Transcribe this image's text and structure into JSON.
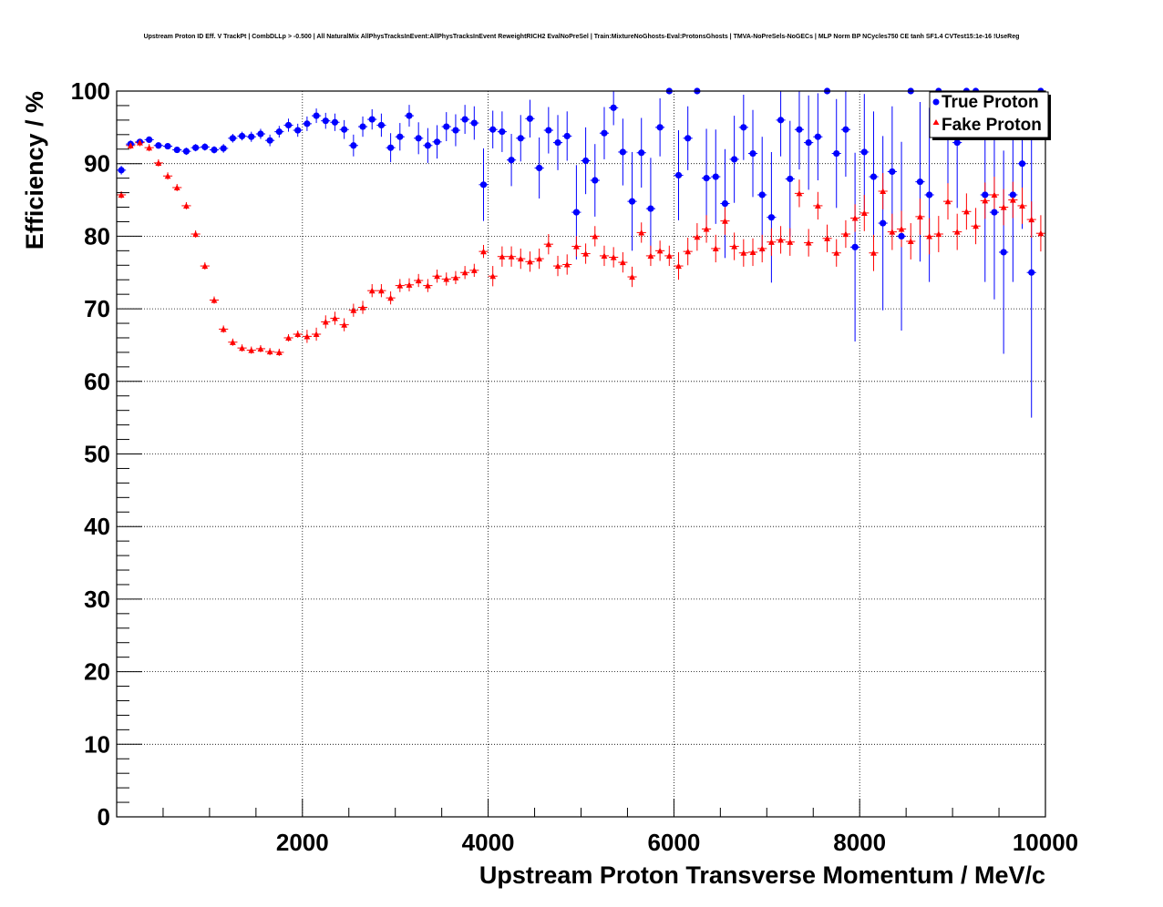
{
  "chart_data": {
    "type": "scatter",
    "title": "Upstream Proton ID Eff. V TrackPt | CombDLLp > -0.500 | All NaturalMix AllPhysTracksInEvent:AllPhysTracksInEvent ReweightRICH2 EvalNoPreSel | Train:MixtureNoGhosts-Eval:ProtonsGhosts | TMVA-NoPreSels-NoGECs | MLP Norm BP NCycles750 CE tanh SF1.4 CVTest15:1e-16 !UseReg",
    "xlabel": "Upstream Proton Transverse Momentum / MeV/c",
    "ylabel": "Efficiency / %",
    "xlim": [
      0,
      10000
    ],
    "ylim": [
      0,
      100
    ],
    "x_ticks": [
      2000,
      4000,
      6000,
      8000,
      10000
    ],
    "y_ticks": [
      0,
      10,
      20,
      30,
      40,
      50,
      60,
      70,
      80,
      90,
      100
    ],
    "grid": true,
    "legend_position": "top-right",
    "series": [
      {
        "name": "True Proton",
        "color": "#0000ff",
        "marker": "circle",
        "x": [
          50,
          150,
          250,
          350,
          450,
          550,
          650,
          750,
          850,
          950,
          1050,
          1150,
          1250,
          1350,
          1450,
          1550,
          1650,
          1750,
          1850,
          1950,
          2050,
          2150,
          2250,
          2350,
          2450,
          2550,
          2650,
          2750,
          2850,
          2950,
          3050,
          3150,
          3250,
          3350,
          3450,
          3550,
          3650,
          3750,
          3850,
          3950,
          4050,
          4150,
          4250,
          4350,
          4450,
          4550,
          4650,
          4750,
          4850,
          4950,
          5050,
          5150,
          5250,
          5350,
          5450,
          5550,
          5650,
          5750,
          5850,
          5950,
          6050,
          6150,
          6250,
          6350,
          6450,
          6550,
          6650,
          6750,
          6850,
          6950,
          7050,
          7150,
          7250,
          7350,
          7450,
          7550,
          7650,
          7750,
          7850,
          7950,
          8050,
          8150,
          8250,
          8350,
          8450,
          8550,
          8650,
          8750,
          8850,
          8950,
          9050,
          9150,
          9250,
          9350,
          9450,
          9550,
          9650,
          9750,
          9850,
          9950
        ],
        "y": [
          89.1,
          92.7,
          93.0,
          93.3,
          92.5,
          92.4,
          91.9,
          91.7,
          92.2,
          92.3,
          91.9,
          92.1,
          93.5,
          93.8,
          93.7,
          94.1,
          93.2,
          94.4,
          95.3,
          94.6,
          95.5,
          96.6,
          95.9,
          95.7,
          94.7,
          92.5,
          95.1,
          96.1,
          95.3,
          92.2,
          93.7,
          96.6,
          93.5,
          92.5,
          93.0,
          95.1,
          94.6,
          96.1,
          95.6,
          87.1,
          94.7,
          94.4,
          90.5,
          93.5,
          96.2,
          89.4,
          94.6,
          92.9,
          93.8,
          83.3,
          90.4,
          87.7,
          94.2,
          97.7,
          91.6,
          84.8,
          91.5,
          83.8,
          95.0,
          100.0,
          88.4,
          93.5,
          100.0,
          88.0,
          88.2,
          84.5,
          90.6,
          95.0,
          91.4,
          85.7,
          82.6,
          96.0,
          87.9,
          94.7,
          92.9,
          93.7,
          100.0,
          91.4,
          94.7,
          78.5,
          91.6,
          88.2,
          81.8,
          88.9,
          80.0,
          100.0,
          87.5,
          85.7,
          100.0,
          93.7,
          92.9,
          100.0,
          100.0,
          85.7,
          83.3,
          77.8,
          85.7,
          90.0,
          75.0,
          100.0
        ],
        "y_err": [
          0.6,
          0.5,
          0.4,
          0.4,
          0.4,
          0.4,
          0.4,
          0.5,
          0.5,
          0.5,
          0.5,
          0.6,
          0.6,
          0.6,
          0.7,
          0.7,
          0.8,
          0.8,
          0.9,
          0.9,
          1.0,
          1.0,
          1.1,
          1.2,
          1.3,
          1.5,
          1.4,
          1.4,
          1.6,
          2.0,
          1.9,
          1.5,
          2.2,
          2.4,
          2.3,
          2.0,
          2.2,
          2.0,
          2.3,
          5.0,
          2.6,
          2.8,
          3.6,
          3.2,
          2.6,
          4.2,
          3.2,
          3.8,
          3.4,
          6.5,
          4.6,
          5.0,
          3.6,
          2.4,
          4.6,
          6.8,
          4.8,
          7.0,
          4.0,
          0.0,
          6.2,
          4.4,
          0.0,
          6.8,
          6.5,
          7.5,
          6.0,
          4.5,
          6.0,
          8.0,
          9.0,
          5.0,
          8.0,
          5.5,
          6.5,
          6.0,
          0.0,
          7.5,
          6.5,
          13.0,
          8.0,
          9.0,
          12.0,
          9.0,
          13.0,
          0.0,
          11.0,
          12.0,
          0.0,
          8.0,
          9.0,
          0.0,
          0.0,
          12.0,
          12.0,
          14.0,
          12.0,
          9.0,
          20.0,
          0.0
        ]
      },
      {
        "name": "Fake Proton",
        "color": "#ff0000",
        "marker": "triangle",
        "x": [
          50,
          150,
          250,
          350,
          450,
          550,
          650,
          750,
          850,
          950,
          1050,
          1150,
          1250,
          1350,
          1450,
          1550,
          1650,
          1750,
          1850,
          1950,
          2050,
          2150,
          2250,
          2350,
          2450,
          2550,
          2650,
          2750,
          2850,
          2950,
          3050,
          3150,
          3250,
          3350,
          3450,
          3550,
          3650,
          3750,
          3850,
          3950,
          4050,
          4150,
          4250,
          4350,
          4450,
          4550,
          4650,
          4750,
          4850,
          4950,
          5050,
          5150,
          5250,
          5350,
          5450,
          5550,
          5650,
          5750,
          5850,
          5950,
          6050,
          6150,
          6250,
          6350,
          6450,
          6550,
          6650,
          6750,
          6850,
          6950,
          7050,
          7150,
          7250,
          7350,
          7450,
          7550,
          7650,
          7750,
          7850,
          7950,
          8050,
          8150,
          8250,
          8350,
          8450,
          8550,
          8650,
          8750,
          8850,
          8950,
          9050,
          9150,
          9250,
          9350,
          9450,
          9550,
          9650,
          9750,
          9850,
          9950
        ],
        "y": [
          85.7,
          92.5,
          92.9,
          92.2,
          90.1,
          88.3,
          86.7,
          84.2,
          80.3,
          75.9,
          71.2,
          67.2,
          65.4,
          64.6,
          64.3,
          64.5,
          64.1,
          64.0,
          66.0,
          66.5,
          66.2,
          66.5,
          68.2,
          68.7,
          67.8,
          69.8,
          70.2,
          72.5,
          72.5,
          71.5,
          73.2,
          73.3,
          73.9,
          73.2,
          74.5,
          74.1,
          74.3,
          75.0,
          75.3,
          77.9,
          74.5,
          77.2,
          77.2,
          76.9,
          76.5,
          76.9,
          78.9,
          75.9,
          76.1,
          78.6,
          77.6,
          80.0,
          77.3,
          77.1,
          76.4,
          74.4,
          80.5,
          77.3,
          78.0,
          77.3,
          75.9,
          77.9,
          79.9,
          81.0,
          78.3,
          82.1,
          78.6,
          77.7,
          77.8,
          78.3,
          79.2,
          79.5,
          79.2,
          85.9,
          79.1,
          84.2,
          79.7,
          77.7,
          80.3,
          82.5,
          83.2,
          77.7,
          86.2,
          80.6,
          81.0,
          79.3,
          82.7,
          80.0,
          80.3,
          84.8,
          80.6,
          83.4,
          81.4,
          84.9,
          85.7,
          84.0,
          85.0,
          84.2,
          82.3,
          80.4
        ]
      }
    ]
  }
}
